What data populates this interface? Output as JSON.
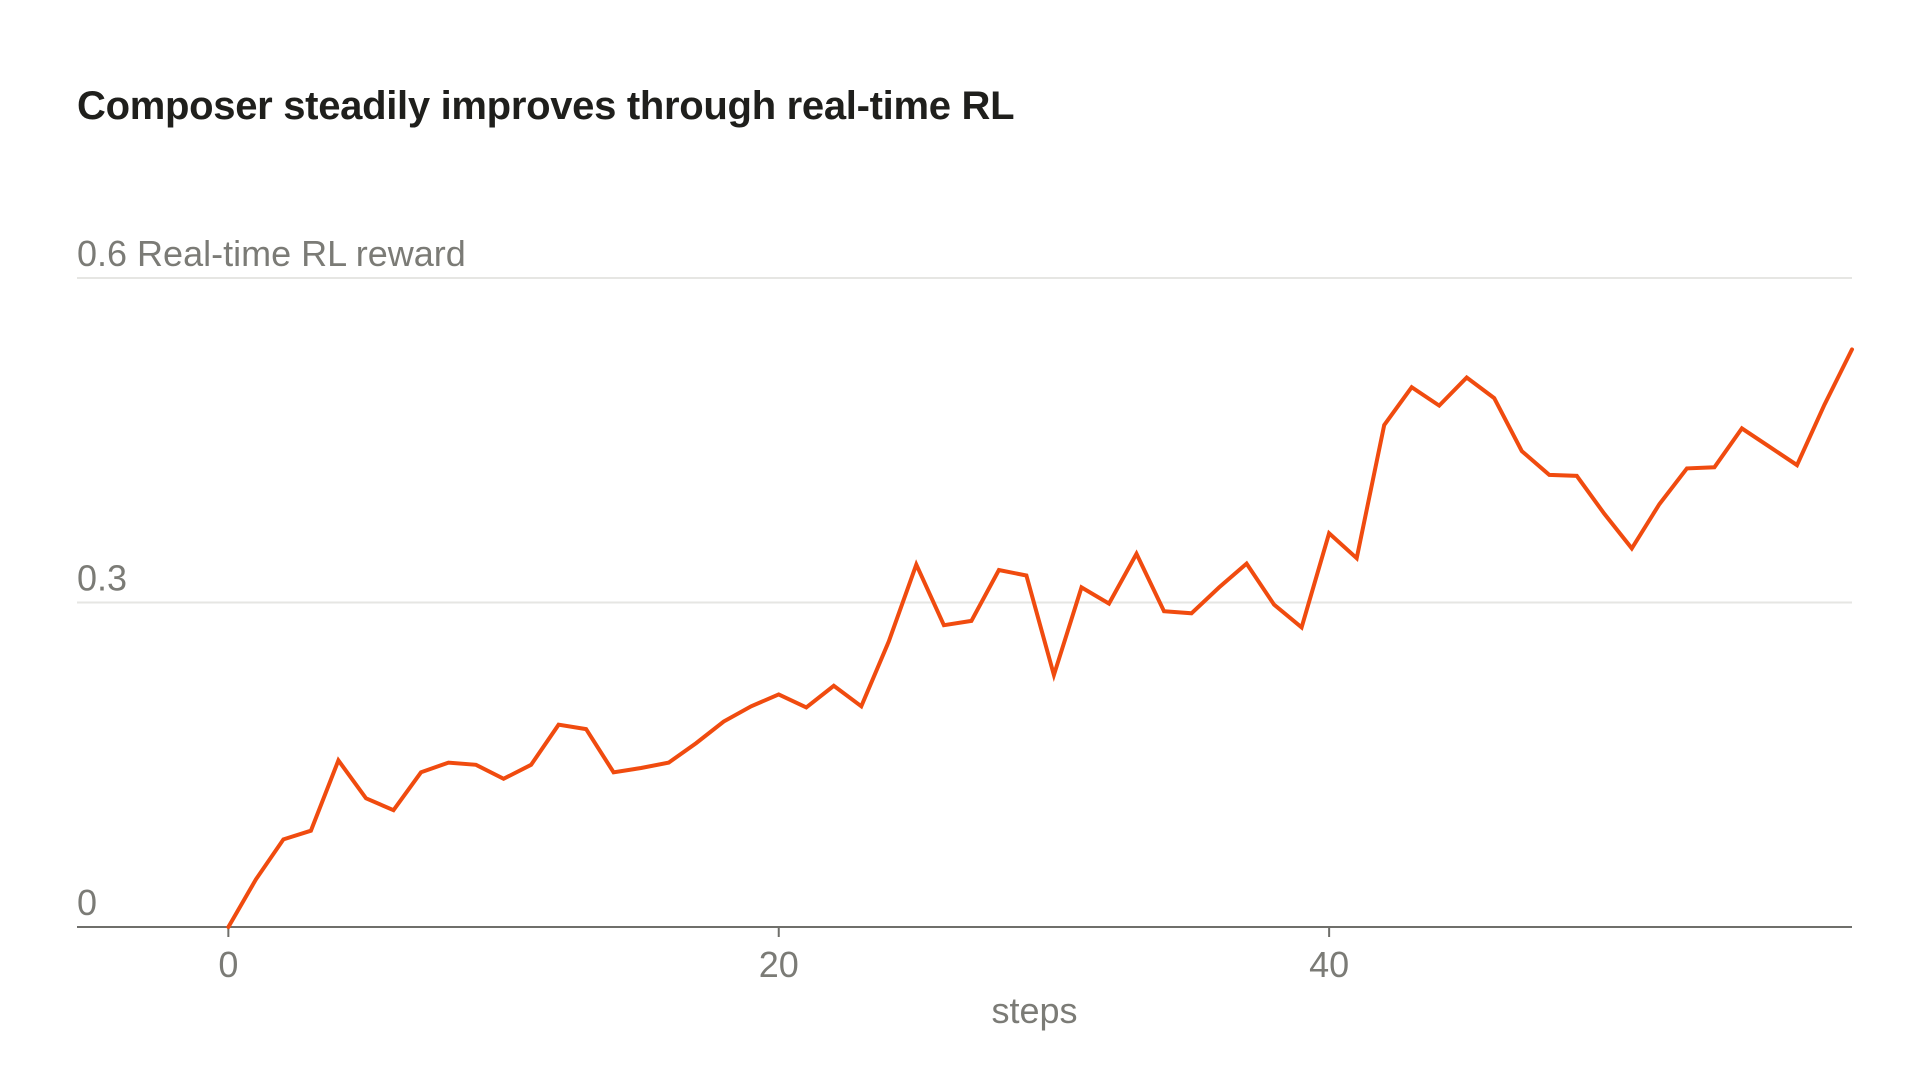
{
  "chart_data": {
    "type": "line",
    "title": "Composer steadily improves through real-time RL",
    "xlabel": "steps",
    "ylabel": "Real-time RL reward",
    "xlim": [
      -5.5,
      59
    ],
    "ylim": [
      0,
      0.6
    ],
    "x_ticks": [
      0,
      20,
      40
    ],
    "y_ticks": [
      0,
      0.3,
      0.6
    ],
    "x_tick_labels": [
      "0",
      "20",
      "40"
    ],
    "y_tick_labels": [
      "0",
      "0.3",
      "0.6"
    ],
    "grid": "horizontal",
    "color": "#f04b0f",
    "x": [
      0,
      1,
      2,
      3,
      4,
      5,
      6,
      7,
      8,
      9,
      10,
      11,
      12,
      13,
      14,
      15,
      16,
      17,
      18,
      19,
      20,
      21,
      22,
      23,
      24,
      25,
      26,
      27,
      28,
      29,
      30,
      31,
      32,
      33,
      34,
      35,
      36,
      37,
      38,
      39,
      40,
      41,
      42,
      43,
      44,
      45,
      46,
      47,
      48,
      49,
      50,
      51,
      52,
      53,
      54,
      55,
      56,
      57,
      58,
      59
    ],
    "y": [
      0,
      0.044,
      0.081,
      0.089,
      0.154,
      0.119,
      0.108,
      0.143,
      0.152,
      0.15,
      0.137,
      0.15,
      0.187,
      0.183,
      0.143,
      0.147,
      0.152,
      0.17,
      0.19,
      0.204,
      0.215,
      0.203,
      0.223,
      0.204,
      0.264,
      0.335,
      0.279,
      0.283,
      0.33,
      0.325,
      0.233,
      0.314,
      0.299,
      0.345,
      0.292,
      0.29,
      0.314,
      0.336,
      0.298,
      0.277,
      0.364,
      0.341,
      0.464,
      0.499,
      0.482,
      0.508,
      0.489,
      0.44,
      0.418,
      0.417,
      0.382,
      0.35,
      0.391,
      0.424,
      0.425,
      0.461,
      0.444,
      0.427,
      0.483,
      0.534
    ]
  }
}
